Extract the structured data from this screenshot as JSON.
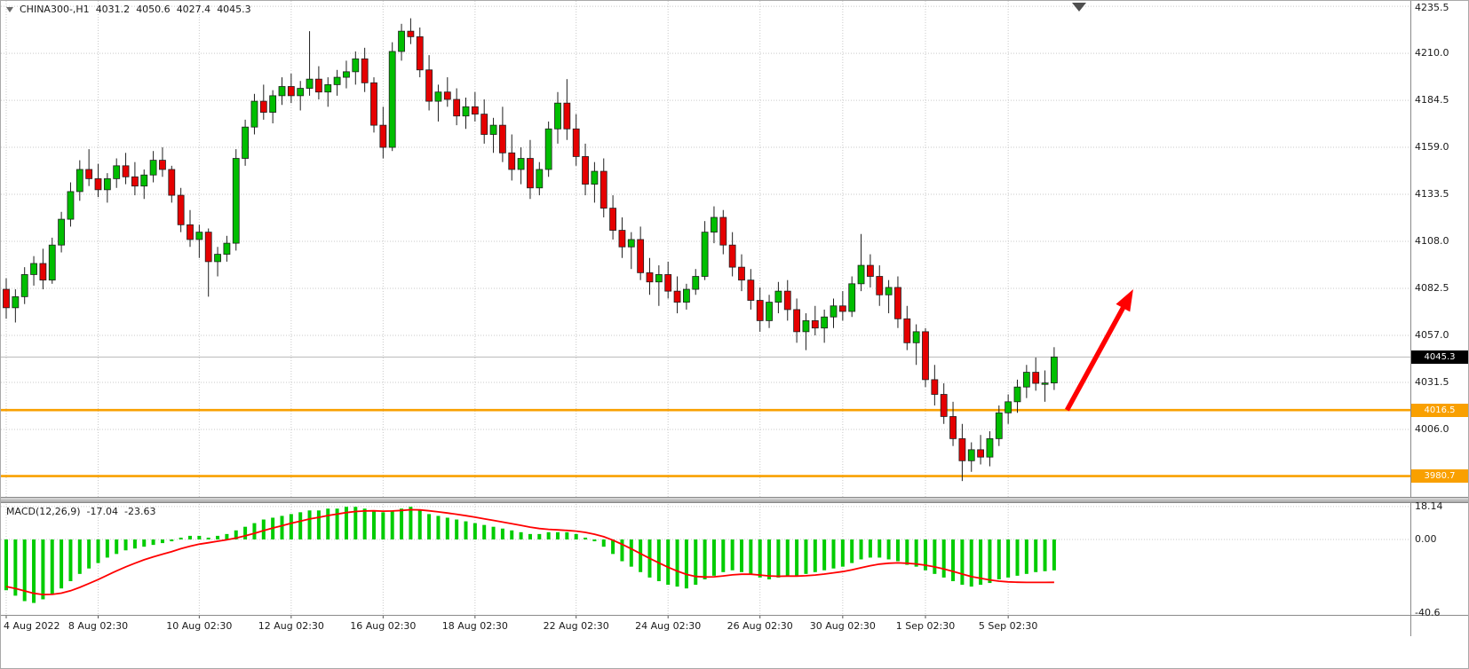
{
  "header": {
    "symbol": "CHINA300-,H1",
    "open": "4031.2",
    "high": "4050.6",
    "low": "4027.4",
    "close": "4045.3"
  },
  "macd_panel": {
    "title": "MACD(12,26,9)",
    "value": "-17.04",
    "signal_value": "-23.63"
  },
  "chart_data": {
    "type": "candlestick",
    "symbol": "CHINA300-",
    "timeframe": "H1",
    "title": "CHINA300- H1 candlestick chart with MACD(12,26,9)",
    "price_axis_ticks": [
      "4235.5",
      "4210.0",
      "4184.5",
      "4159.0",
      "4133.5",
      "4108.0",
      "4082.5",
      "4057.0",
      "4031.5",
      "4006.0"
    ],
    "price_range_visible": [
      3968,
      4238
    ],
    "current_price": {
      "label": "4045.3",
      "value": 4045.3,
      "bg": "#000000",
      "fg": "#ffffff"
    },
    "hlines": [
      {
        "label": "4016.5",
        "value": 4016.5,
        "color": "#F9A000"
      },
      {
        "label": "3980.7",
        "value": 3980.7,
        "color": "#F9A000"
      }
    ],
    "x_labels": [
      {
        "label": "4 Aug 2022",
        "i": 0
      },
      {
        "label": "8 Aug 02:30",
        "i": 10
      },
      {
        "label": "10 Aug 02:30",
        "i": 21
      },
      {
        "label": "12 Aug 02:30",
        "i": 31
      },
      {
        "label": "16 Aug 02:30",
        "i": 41
      },
      {
        "label": "18 Aug 02:30",
        "i": 51
      },
      {
        "label": "22 Aug 02:30",
        "i": 62
      },
      {
        "label": "24 Aug 02:30",
        "i": 72
      },
      {
        "label": "26 Aug 02:30",
        "i": 82
      },
      {
        "label": "30 Aug 02:30",
        "i": 91
      },
      {
        "label": "1 Sep 02:30",
        "i": 100
      },
      {
        "label": "5 Sep 02:30",
        "i": 109
      }
    ],
    "candles": [
      [
        4082,
        4088,
        4066,
        4072
      ],
      [
        4072,
        4082,
        4064,
        4078
      ],
      [
        4078,
        4094,
        4074,
        4090
      ],
      [
        4090,
        4100,
        4084,
        4096
      ],
      [
        4096,
        4104,
        4082,
        4087
      ],
      [
        4087,
        4110,
        4085,
        4106
      ],
      [
        4106,
        4124,
        4102,
        4120
      ],
      [
        4120,
        4140,
        4116,
        4135
      ],
      [
        4135,
        4152,
        4130,
        4147
      ],
      [
        4147,
        4158,
        4138,
        4142
      ],
      [
        4142,
        4150,
        4132,
        4136
      ],
      [
        4136,
        4145,
        4129,
        4142
      ],
      [
        4142,
        4153,
        4137,
        4149
      ],
      [
        4149,
        4156,
        4139,
        4143
      ],
      [
        4143,
        4151,
        4133,
        4138
      ],
      [
        4138,
        4147,
        4131,
        4144
      ],
      [
        4144,
        4157,
        4140,
        4152
      ],
      [
        4152,
        4159,
        4143,
        4147
      ],
      [
        4147,
        4149,
        4129,
        4133
      ],
      [
        4133,
        4137,
        4113,
        4117
      ],
      [
        4117,
        4125,
        4105,
        4109
      ],
      [
        4109,
        4117,
        4099,
        4113
      ],
      [
        4113,
        4115,
        4078,
        4097
      ],
      [
        4097,
        4105,
        4089,
        4101
      ],
      [
        4101,
        4111,
        4097,
        4107
      ],
      [
        4107,
        4158,
        4103,
        4153
      ],
      [
        4153,
        4174,
        4149,
        4170
      ],
      [
        4170,
        4188,
        4166,
        4184
      ],
      [
        4184,
        4193,
        4174,
        4178
      ],
      [
        4178,
        4190,
        4172,
        4187
      ],
      [
        4187,
        4197,
        4182,
        4192
      ],
      [
        4192,
        4199,
        4183,
        4187
      ],
      [
        4187,
        4195,
        4179,
        4191
      ],
      [
        4191,
        4222,
        4187,
        4196
      ],
      [
        4196,
        4203,
        4185,
        4189
      ],
      [
        4189,
        4197,
        4181,
        4193
      ],
      [
        4193,
        4201,
        4187,
        4197
      ],
      [
        4197,
        4206,
        4191,
        4200
      ],
      [
        4200,
        4211,
        4193,
        4207
      ],
      [
        4207,
        4213,
        4189,
        4194
      ],
      [
        4194,
        4197,
        4167,
        4171
      ],
      [
        4171,
        4181,
        4153,
        4159
      ],
      [
        4159,
        4216,
        4157,
        4211
      ],
      [
        4211,
        4226,
        4206,
        4222
      ],
      [
        4222,
        4229,
        4215,
        4219
      ],
      [
        4219,
        4224,
        4197,
        4201
      ],
      [
        4201,
        4209,
        4179,
        4184
      ],
      [
        4184,
        4193,
        4173,
        4189
      ],
      [
        4189,
        4197,
        4181,
        4185
      ],
      [
        4185,
        4191,
        4171,
        4176
      ],
      [
        4176,
        4186,
        4169,
        4181
      ],
      [
        4181,
        4189,
        4173,
        4177
      ],
      [
        4177,
        4185,
        4161,
        4166
      ],
      [
        4166,
        4175,
        4156,
        4171
      ],
      [
        4171,
        4181,
        4151,
        4156
      ],
      [
        4156,
        4166,
        4141,
        4147
      ],
      [
        4147,
        4159,
        4139,
        4153
      ],
      [
        4153,
        4163,
        4131,
        4137
      ],
      [
        4137,
        4151,
        4133,
        4147
      ],
      [
        4147,
        4173,
        4143,
        4169
      ],
      [
        4169,
        4189,
        4161,
        4183
      ],
      [
        4183,
        4196,
        4163,
        4169
      ],
      [
        4169,
        4177,
        4149,
        4154
      ],
      [
        4154,
        4161,
        4133,
        4139
      ],
      [
        4139,
        4151,
        4129,
        4146
      ],
      [
        4146,
        4153,
        4121,
        4126
      ],
      [
        4126,
        4133,
        4109,
        4114
      ],
      [
        4114,
        4121,
        4099,
        4105
      ],
      [
        4105,
        4113,
        4093,
        4109
      ],
      [
        4109,
        4116,
        4087,
        4091
      ],
      [
        4091,
        4099,
        4079,
        4086
      ],
      [
        4086,
        4095,
        4073,
        4090
      ],
      [
        4090,
        4097,
        4077,
        4081
      ],
      [
        4081,
        4089,
        4069,
        4075
      ],
      [
        4075,
        4085,
        4071,
        4082
      ],
      [
        4082,
        4093,
        4079,
        4089
      ],
      [
        4089,
        4119,
        4087,
        4113
      ],
      [
        4113,
        4127,
        4107,
        4121
      ],
      [
        4121,
        4125,
        4101,
        4106
      ],
      [
        4106,
        4113,
        4089,
        4094
      ],
      [
        4094,
        4101,
        4081,
        4087
      ],
      [
        4087,
        4093,
        4071,
        4076
      ],
      [
        4076,
        4083,
        4059,
        4065
      ],
      [
        4065,
        4079,
        4061,
        4075
      ],
      [
        4075,
        4086,
        4069,
        4081
      ],
      [
        4081,
        4087,
        4065,
        4071
      ],
      [
        4071,
        4077,
        4053,
        4059
      ],
      [
        4059,
        4069,
        4049,
        4065
      ],
      [
        4065,
        4073,
        4057,
        4061
      ],
      [
        4061,
        4071,
        4053,
        4067
      ],
      [
        4067,
        4077,
        4061,
        4073
      ],
      [
        4073,
        4081,
        4065,
        4070
      ],
      [
        4070,
        4089,
        4067,
        4085
      ],
      [
        4085,
        4112,
        4081,
        4095
      ],
      [
        4095,
        4101,
        4083,
        4089
      ],
      [
        4089,
        4095,
        4073,
        4079
      ],
      [
        4079,
        4087,
        4069,
        4083
      ],
      [
        4083,
        4089,
        4061,
        4066
      ],
      [
        4066,
        4073,
        4049,
        4053
      ],
      [
        4053,
        4063,
        4041,
        4059
      ],
      [
        4059,
        4061,
        4029,
        4033
      ],
      [
        4033,
        4041,
        4019,
        4025
      ],
      [
        4025,
        4031,
        4009,
        4013
      ],
      [
        4013,
        4021,
        3997,
        4001
      ],
      [
        4001,
        4009,
        3978,
        3989
      ],
      [
        3989,
        3999,
        3983,
        3995
      ],
      [
        3995,
        4003,
        3987,
        3991
      ],
      [
        3991,
        4005,
        3986,
        4001
      ],
      [
        4001,
        4019,
        3997,
        4015
      ],
      [
        4015,
        4025,
        4009,
        4021
      ],
      [
        4021,
        4033,
        4015,
        4029
      ],
      [
        4029,
        4041,
        4023,
        4037
      ],
      [
        4037,
        4045,
        4027,
        4031
      ],
      [
        4031,
        4038,
        4021,
        4031.2
      ],
      [
        4031.2,
        4050.6,
        4027.4,
        4045.3
      ]
    ],
    "macd": {
      "axis_ticks": [
        "18.14",
        "0.00",
        "-40.6"
      ],
      "value_range": [
        -41.6,
        20.1
      ],
      "histogram": [
        -28,
        -31,
        -34,
        -35,
        -33,
        -30,
        -27,
        -23,
        -19,
        -16,
        -13,
        -10,
        -8,
        -6,
        -5,
        -4,
        -3,
        -2,
        -1,
        1,
        2,
        2,
        1,
        2,
        3,
        5,
        7,
        9,
        11,
        12,
        13,
        14,
        15,
        16,
        16,
        17,
        17,
        18,
        18,
        17,
        16,
        15,
        16,
        17,
        18,
        16,
        14,
        13,
        12,
        11,
        10,
        9,
        8,
        7,
        6,
        5,
        4,
        3,
        3,
        4,
        4,
        4,
        3,
        1,
        -1,
        -4,
        -8,
        -12,
        -15,
        -18,
        -21,
        -23,
        -25,
        -26,
        -27,
        -25,
        -22,
        -20,
        -18,
        -17,
        -18,
        -19,
        -21,
        -22,
        -21,
        -20,
        -20,
        -19,
        -18,
        -17,
        -16,
        -15,
        -13,
        -11,
        -10,
        -10,
        -11,
        -12,
        -14,
        -15,
        -17,
        -19,
        -21,
        -23,
        -25,
        -26,
        -25,
        -24,
        -22,
        -21,
        -20,
        -19,
        -18,
        -17.5,
        -17.04
      ],
      "signal": [
        -26,
        -27,
        -28.4,
        -29.7,
        -30.4,
        -30.3,
        -29.6,
        -28.3,
        -26.4,
        -24.3,
        -22.1,
        -19.7,
        -17.3,
        -15.1,
        -13.1,
        -11.2,
        -9.6,
        -8.1,
        -6.7,
        -5.1,
        -3.7,
        -2.6,
        -1.8,
        -1,
        -0.2,
        0.8,
        2,
        3.4,
        4.9,
        6.3,
        7.6,
        8.9,
        10.1,
        11.3,
        12.2,
        13.2,
        14,
        14.8,
        15.4,
        15.7,
        15.8,
        15.6,
        15.7,
        16,
        16.4,
        16.3,
        15.8,
        15.2,
        14.6,
        13.9,
        13.1,
        12.3,
        11.4,
        10.5,
        9.6,
        8.7,
        7.8,
        6.8,
        6,
        5.6,
        5.3,
        5,
        4.6,
        3.9,
        2.9,
        1.5,
        -0.4,
        -2.7,
        -5.2,
        -7.8,
        -10.4,
        -12.9,
        -15.3,
        -17.4,
        -19.3,
        -20.4,
        -20.7,
        -20.6,
        -20.1,
        -19.5,
        -19.2,
        -19.2,
        -19.6,
        -20.1,
        -20.3,
        -20.2,
        -20.2,
        -20,
        -19.6,
        -19.1,
        -18.4,
        -17.7,
        -16.8,
        -15.6,
        -14.5,
        -13.6,
        -13.1,
        -12.9,
        -13.1,
        -13.5,
        -14.2,
        -15.1,
        -16.3,
        -17.6,
        -19.1,
        -20.5,
        -21.4,
        -22.3,
        -23,
        -23.4,
        -23.6,
        -23.7,
        -23.7,
        -23.66,
        -23.63
      ]
    },
    "annotation_arrow": {
      "color": "#FF0000",
      "from": {
        "i": 115.4,
        "price": 4016.5
      },
      "to": {
        "i": 122.6,
        "price": 4082.0
      }
    },
    "colors": {
      "up": "#00BE00",
      "down": "#E50000",
      "outline": "#1f1f1f",
      "histogram": "#00CC00",
      "signal_line": "#FF0000",
      "grid": "#c9c9c9",
      "bid_line": "#b9b9b9",
      "hline": "#F9A000",
      "background": "#ffffff"
    }
  }
}
